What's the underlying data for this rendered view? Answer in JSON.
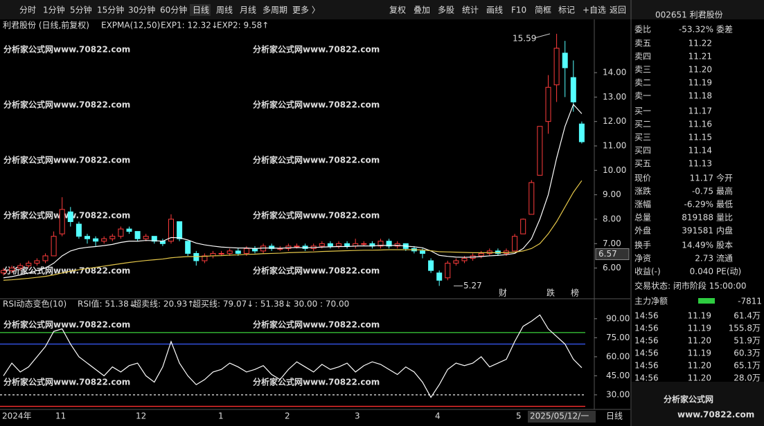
{
  "toolbar": {
    "periods": [
      "分时",
      "1分钟",
      "5分钟",
      "15分钟",
      "30分钟",
      "60分钟",
      "日线",
      "周线",
      "月线",
      "多周期",
      "更多 〉"
    ],
    "buttons": [
      "复权",
      "叠加",
      "多股",
      "统计",
      "画线",
      "F10",
      "简框",
      "标记",
      "+自选",
      "返回"
    ]
  },
  "chart": {
    "title": "利君股份 (日线,前复权)",
    "indicator": "EXPMA(12,50)",
    "exp1_label": "EXP1: 12.32↓",
    "exp2_label": "EXP2: 9.58↑",
    "ylim": [
      4.8,
      15.7
    ],
    "yticks": [
      {
        "value": 14,
        "label": "14.00"
      },
      {
        "value": 13,
        "label": "13.00"
      },
      {
        "value": 12,
        "label": "12.00"
      },
      {
        "value": 11,
        "label": "11.00"
      },
      {
        "value": 10,
        "label": "10.00"
      },
      {
        "value": 9,
        "label": "9.00"
      },
      {
        "value": 8,
        "label": "8.00"
      },
      {
        "value": 7,
        "label": "7.00"
      },
      {
        "value": 6,
        "label": "6.00"
      }
    ],
    "cursor_price": {
      "value": 6.57,
      "label": "6.57"
    },
    "high_mark": {
      "value": 15.59,
      "label": "15.59"
    },
    "low_mark": {
      "value": 5.27,
      "label": "5.27"
    },
    "badges": [
      "财",
      "跌",
      "榜"
    ],
    "candles": [
      [
        5.8,
        6.0,
        5.7,
        5.9
      ],
      [
        5.9,
        6.1,
        5.8,
        6.0
      ],
      [
        6.0,
        6.2,
        5.9,
        6.1
      ],
      [
        6.1,
        6.3,
        6.0,
        6.2
      ],
      [
        6.2,
        6.4,
        6.1,
        6.3
      ],
      [
        6.3,
        6.6,
        6.2,
        6.5
      ],
      [
        6.5,
        7.5,
        6.5,
        7.3
      ],
      [
        7.4,
        8.9,
        7.3,
        8.4
      ],
      [
        8.3,
        8.5,
        7.7,
        7.9
      ],
      [
        7.8,
        7.9,
        7.2,
        7.3
      ],
      [
        7.3,
        7.4,
        7.0,
        7.2
      ],
      [
        7.2,
        7.3,
        6.9,
        7.1
      ],
      [
        7.1,
        7.3,
        7.0,
        7.2
      ],
      [
        7.2,
        7.4,
        7.1,
        7.3
      ],
      [
        7.3,
        7.7,
        7.2,
        7.6
      ],
      [
        7.6,
        7.7,
        7.4,
        7.5
      ],
      [
        7.5,
        7.5,
        7.1,
        7.2
      ],
      [
        7.2,
        7.4,
        7.1,
        7.3
      ],
      [
        7.3,
        7.3,
        7.0,
        7.1
      ],
      [
        7.1,
        7.2,
        6.9,
        7.0
      ],
      [
        7.1,
        8.2,
        7.0,
        8.0
      ],
      [
        7.9,
        7.9,
        7.1,
        7.2
      ],
      [
        7.1,
        7.1,
        6.5,
        6.6
      ],
      [
        6.6,
        6.7,
        6.1,
        6.3
      ],
      [
        6.3,
        6.6,
        6.2,
        6.5
      ],
      [
        6.5,
        6.7,
        6.4,
        6.6
      ],
      [
        6.6,
        6.7,
        6.5,
        6.6
      ],
      [
        6.6,
        6.8,
        6.5,
        6.7
      ],
      [
        6.7,
        6.8,
        6.5,
        6.6
      ],
      [
        6.6,
        6.9,
        6.5,
        6.8
      ],
      [
        6.8,
        6.9,
        6.6,
        6.7
      ],
      [
        6.7,
        7.0,
        6.6,
        6.9
      ],
      [
        6.9,
        7.0,
        6.7,
        6.8
      ],
      [
        6.8,
        6.9,
        6.7,
        6.8
      ],
      [
        6.8,
        7.0,
        6.7,
        6.9
      ],
      [
        6.9,
        7.0,
        6.8,
        6.9
      ],
      [
        6.9,
        7.0,
        6.7,
        6.8
      ],
      [
        6.8,
        7.0,
        6.7,
        6.9
      ],
      [
        6.9,
        7.1,
        6.8,
        7.0
      ],
      [
        7.0,
        7.1,
        6.8,
        6.9
      ],
      [
        6.9,
        7.1,
        6.8,
        7.0
      ],
      [
        7.0,
        7.1,
        6.8,
        6.9
      ],
      [
        6.9,
        7.2,
        6.8,
        7.0
      ],
      [
        7.0,
        7.1,
        6.9,
        7.0
      ],
      [
        7.0,
        7.1,
        6.8,
        6.9
      ],
      [
        6.9,
        7.2,
        6.8,
        7.1
      ],
      [
        7.1,
        7.2,
        6.8,
        6.9
      ],
      [
        6.9,
        7.1,
        6.8,
        7.0
      ],
      [
        7.0,
        7.0,
        6.7,
        6.8
      ],
      [
        6.8,
        6.9,
        6.6,
        6.7
      ],
      [
        6.7,
        6.8,
        6.4,
        6.6
      ],
      [
        6.3,
        6.4,
        5.8,
        5.9
      ],
      [
        5.8,
        5.9,
        5.27,
        5.5
      ],
      [
        5.6,
        6.3,
        5.5,
        6.2
      ],
      [
        6.2,
        6.4,
        6.1,
        6.3
      ],
      [
        6.3,
        6.5,
        6.2,
        6.4
      ],
      [
        6.4,
        6.6,
        6.3,
        6.5
      ],
      [
        6.5,
        6.7,
        6.4,
        6.6
      ],
      [
        6.6,
        6.8,
        6.5,
        6.7
      ],
      [
        6.7,
        6.8,
        6.5,
        6.6
      ],
      [
        6.6,
        6.8,
        6.5,
        6.7
      ],
      [
        6.7,
        7.4,
        6.7,
        7.3
      ],
      [
        7.4,
        8.03,
        7.4,
        8.0
      ],
      [
        8.2,
        9.6,
        8.2,
        9.5
      ],
      [
        9.8,
        11.8,
        9.8,
        11.8
      ],
      [
        12.0,
        13.9,
        11.5,
        13.4
      ],
      [
        13.5,
        15.59,
        12.8,
        15.0
      ],
      [
        14.8,
        15.3,
        13.0,
        14.2
      ],
      [
        13.8,
        14.5,
        12.4,
        12.8
      ],
      [
        11.9,
        12.0,
        11.1,
        11.17
      ]
    ],
    "exp1": [
      5.6,
      5.65,
      5.72,
      5.8,
      5.9,
      6.0,
      6.2,
      6.5,
      6.7,
      6.8,
      6.85,
      6.88,
      6.92,
      6.97,
      7.05,
      7.1,
      7.1,
      7.13,
      7.12,
      7.1,
      7.25,
      7.24,
      7.15,
      7.02,
      6.95,
      6.9,
      6.86,
      6.84,
      6.82,
      6.82,
      6.8,
      6.82,
      6.82,
      6.81,
      6.83,
      6.84,
      6.83,
      6.84,
      6.86,
      6.87,
      6.88,
      6.88,
      6.9,
      6.91,
      6.9,
      6.93,
      6.92,
      6.93,
      6.9,
      6.87,
      6.83,
      6.7,
      6.52,
      6.48,
      6.45,
      6.44,
      6.45,
      6.47,
      6.5,
      6.52,
      6.55,
      6.6,
      6.8,
      7.2,
      8.0,
      9.0,
      10.5,
      11.8,
      12.7,
      12.32
    ],
    "exp2": [
      5.5,
      5.52,
      5.55,
      5.58,
      5.62,
      5.66,
      5.72,
      5.8,
      5.87,
      5.93,
      5.98,
      6.03,
      6.08,
      6.13,
      6.18,
      6.23,
      6.27,
      6.31,
      6.34,
      6.37,
      6.42,
      6.45,
      6.47,
      6.47,
      6.48,
      6.5,
      6.51,
      6.53,
      6.54,
      6.56,
      6.57,
      6.59,
      6.6,
      6.61,
      6.63,
      6.64,
      6.65,
      6.66,
      6.68,
      6.69,
      6.7,
      6.71,
      6.72,
      6.73,
      6.73,
      6.74,
      6.75,
      6.75,
      6.75,
      6.75,
      6.74,
      6.71,
      6.67,
      6.66,
      6.65,
      6.64,
      6.63,
      6.63,
      6.63,
      6.63,
      6.63,
      6.65,
      6.7,
      6.8,
      7.0,
      7.4,
      7.9,
      8.5,
      9.1,
      9.58
    ],
    "dates": [
      "2024年",
      "11",
      "12",
      "1",
      "2",
      "3",
      "4",
      "5",
      "2025/05/12/一",
      "日线"
    ]
  },
  "rsi": {
    "title": "RSI动态变色(10)",
    "ylim": [
      19.6,
      97
    ],
    "yticks": [
      {
        "value": 90,
        "label": "90.00"
      },
      {
        "value": 75,
        "label": "75.00"
      },
      {
        "value": 60,
        "label": "60.00"
      },
      {
        "value": 45,
        "label": "45.00"
      },
      {
        "value": 30,
        "label": "30.00"
      }
    ],
    "legend": [
      {
        "label": "RSI值: 51.38↓",
        "value": 51.38,
        "color": "#ffffff"
      },
      {
        "label": "超卖线: 20.93↑",
        "value": 20.93,
        "color": "#e6c84a"
      },
      {
        "label": "超买线: 79.07↓",
        "value": 79.07,
        "color": "#e040e0"
      },
      {
        "label": ": 51.38↓",
        "value": 51.38,
        "color": "#ffffff"
      },
      {
        "label": ": 30.00",
        "value": 30,
        "color": "#ffffff"
      },
      {
        "label": ": 70.00",
        "value": 70,
        "color": "#3a5bff"
      }
    ],
    "values": [
      45,
      55,
      48,
      52,
      60,
      68,
      80,
      82,
      70,
      60,
      55,
      50,
      45,
      52,
      48,
      53,
      55,
      45,
      40,
      52,
      72,
      55,
      45,
      38,
      42,
      48,
      50,
      55,
      52,
      48,
      50,
      53,
      46,
      42,
      50,
      56,
      52,
      48,
      54,
      50,
      52,
      55,
      48,
      53,
      56,
      54,
      50,
      46,
      52,
      48,
      40,
      28,
      38,
      50,
      55,
      53,
      55,
      60,
      52,
      55,
      58,
      72,
      84,
      88,
      93,
      82,
      76,
      70,
      58,
      51.38
    ]
  },
  "quote": {
    "code": "002651 利君股份",
    "weibi": [
      "委比",
      "-53.32%",
      "委差"
    ],
    "asks": [
      [
        "卖五",
        "11.22"
      ],
      [
        "卖四",
        "11.21"
      ],
      [
        "卖三",
        "11.20"
      ],
      [
        "卖二",
        "11.19"
      ],
      [
        "卖一",
        "11.18"
      ]
    ],
    "bids": [
      [
        "买一",
        "11.17"
      ],
      [
        "买二",
        "11.16"
      ],
      [
        "买三",
        "11.15"
      ],
      [
        "买四",
        "11.14"
      ],
      [
        "买五",
        "11.13"
      ]
    ],
    "stats": [
      [
        "现价",
        "11.17",
        "今开"
      ],
      [
        "涨跌",
        "-0.75",
        "最高"
      ],
      [
        "涨幅",
        "-6.29%",
        "最低"
      ],
      [
        "总量",
        "819188",
        "量比"
      ],
      [
        "外盘",
        "391581",
        "内盘"
      ],
      [
        "换手",
        "14.49%",
        "股本"
      ],
      [
        "净资",
        "2.73",
        "流通"
      ],
      [
        "收益(-)",
        "0.040",
        "PE(动)"
      ]
    ],
    "status": "交易状态: 闭市阶段 15:00:00",
    "net_label": "主力净额",
    "net_value": "-7811",
    "ticks": [
      [
        "14:56",
        "11.19",
        "61.4万"
      ],
      [
        "14:56",
        "11.19",
        "155.8万"
      ],
      [
        "14:56",
        "11.20",
        "51.9万"
      ],
      [
        "14:56",
        "11.19",
        "60.3万"
      ],
      [
        "14:56",
        "11.20",
        "65.1万"
      ],
      [
        "14:56",
        "11.20",
        "28.0万"
      ]
    ]
  },
  "watermark": "分析家公式网www.70822.com",
  "logo": {
    "title": "分析家公式网",
    "url": "www.70822.com"
  }
}
